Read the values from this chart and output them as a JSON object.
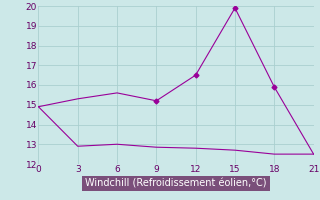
{
  "xlabel": "Windchill (Refroidissement éolien,°C)",
  "line1_x": [
    0,
    3,
    6,
    9,
    12,
    15,
    18,
    21
  ],
  "line1_y": [
    14.9,
    15.3,
    15.6,
    15.2,
    16.5,
    19.9,
    15.9,
    12.5
  ],
  "line2_x": [
    0,
    3,
    6,
    9,
    12,
    15,
    18,
    21
  ],
  "line2_y": [
    14.9,
    12.9,
    13.0,
    12.85,
    12.8,
    12.7,
    12.5,
    12.5
  ],
  "line_color": "#990099",
  "bg_color": "#cce8e8",
  "grid_color": "#aacfcf",
  "xlabel_bg": "#7a4f7a",
  "xlabel_color": "#ffffff",
  "tick_color": "#660066",
  "xlim": [
    0,
    21
  ],
  "ylim": [
    12,
    20
  ],
  "xticks": [
    0,
    3,
    6,
    9,
    12,
    15,
    18,
    21
  ],
  "yticks": [
    12,
    13,
    14,
    15,
    16,
    17,
    18,
    19,
    20
  ],
  "tick_fontsize": 6.5,
  "xlabel_fontsize": 7,
  "marker": "D",
  "marker_size": 2.5,
  "linewidth": 0.8
}
